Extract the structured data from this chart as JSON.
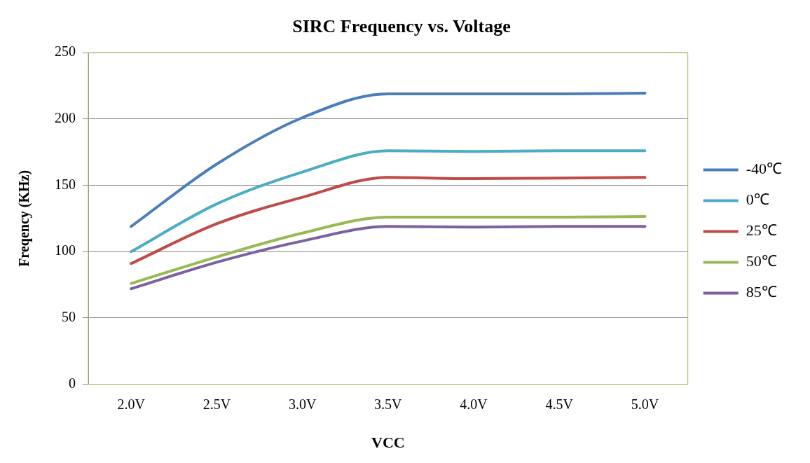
{
  "chart_data": {
    "type": "line",
    "title": "SIRC Frequency vs. Voltage",
    "xlabel": "VCC",
    "ylabel": "Freqency (KHz)",
    "categories": [
      "2.0V",
      "2.5V",
      "3.0V",
      "3.5V",
      "4.0V",
      "4.5V",
      "5.0V"
    ],
    "series": [
      {
        "name": "-40℃",
        "color": "#4a7ebb",
        "values": [
          119,
          166,
          201,
          219,
          219,
          219,
          219.5
        ]
      },
      {
        "name": "0℃",
        "color": "#4bacc6",
        "values": [
          100,
          136,
          160,
          176,
          175.5,
          176,
          176
        ]
      },
      {
        "name": "25℃",
        "color": "#be4b48",
        "values": [
          91,
          121,
          141,
          156,
          155,
          155.5,
          156
        ]
      },
      {
        "name": "50℃",
        "color": "#98b954",
        "values": [
          76,
          96,
          114,
          126,
          126,
          126,
          126.5
        ]
      },
      {
        "name": "85℃",
        "color": "#7d60a0",
        "values": [
          72,
          92,
          108,
          119,
          118.5,
          119,
          119
        ]
      }
    ],
    "ylim": [
      0,
      250
    ],
    "yticks": [
      0,
      50,
      100,
      150,
      200,
      250
    ],
    "grid": "y",
    "legend": "right",
    "marker": "none",
    "line_style": "solid"
  }
}
